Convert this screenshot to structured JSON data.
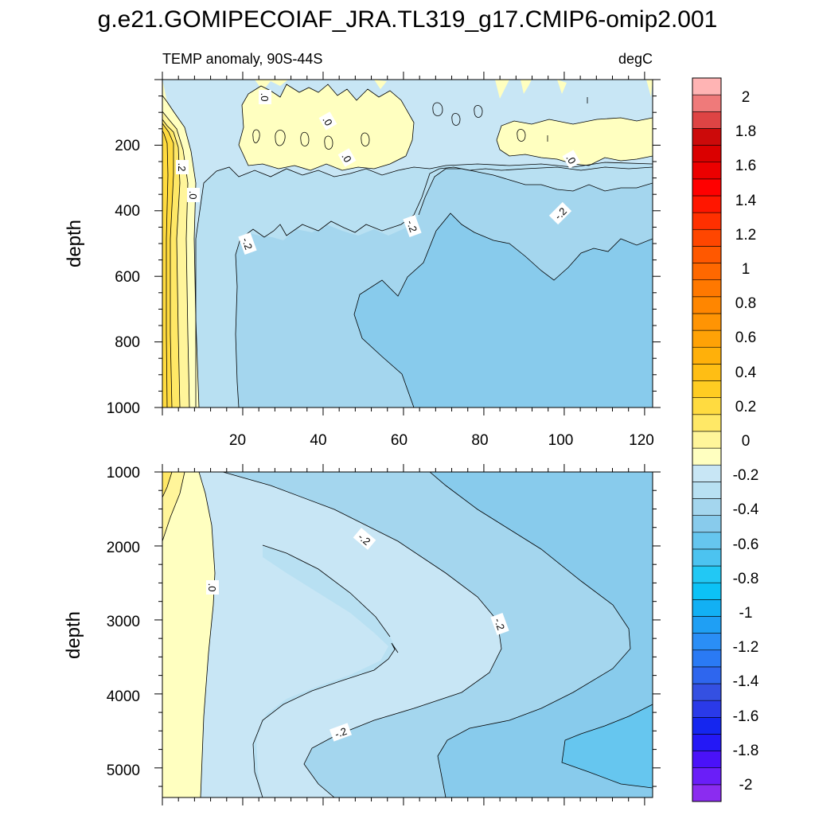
{
  "chart_data": {
    "type": "contour",
    "title": "g.e21.GOMIPECOIAF_JRA.TL319_g17.CMIP6-omip2.001",
    "left_string": "TEMP anomaly, 90S-44S",
    "right_string": "degC",
    "xlabel": "",
    "ylabel": "depth",
    "xlim": [
      0,
      122
    ],
    "x_ticks": [
      "20",
      "40",
      "60",
      "80",
      "100",
      "120"
    ],
    "contour_labels": [
      "-.2",
      ".0",
      ".2"
    ],
    "upper_panel": {
      "ylim": [
        0,
        1000
      ],
      "y_ticks": [
        "200",
        "400",
        "600",
        "800",
        "1000"
      ]
    },
    "lower_panel": {
      "ylim": [
        1000,
        5400
      ],
      "y_ticks": [
        "1000",
        "2000",
        "3000",
        "4000",
        "5000"
      ]
    },
    "colorbar": {
      "levels": [
        -2.1,
        -2.0,
        -1.9,
        -1.8,
        -1.7,
        -1.6,
        -1.5,
        -1.4,
        -1.3,
        -1.2,
        -1.1,
        -1.0,
        -0.9,
        -0.8,
        -0.7,
        -0.6,
        -0.5,
        -0.4,
        -0.3,
        -0.2,
        -0.1,
        0.0,
        0.1,
        0.2,
        0.3,
        0.4,
        0.5,
        0.6,
        0.7,
        0.8,
        0.9,
        1.0,
        1.1,
        1.2,
        1.3,
        1.4,
        1.5,
        1.6,
        1.7,
        1.8,
        1.9,
        2.0,
        2.1,
        2.2
      ],
      "colors": [
        "#8b2cf0",
        "#6a1ef8",
        "#4a12f8",
        "#2418f6",
        "#1526ef",
        "#2a3ae8",
        "#3450e2",
        "#2e66ee",
        "#2a7af4",
        "#2a8ef6",
        "#1f9ff4",
        "#12b0f4",
        "#0cc2f6",
        "#22c8f4",
        "#4cc3f0",
        "#66c6ef",
        "#88cbec",
        "#a4d6ee",
        "#b8e0f2",
        "#c8e6f5",
        "#ffffc0",
        "#fff59a",
        "#ffe866",
        "#ffdb40",
        "#ffcc22",
        "#ffbe14",
        "#ffb00a",
        "#ffa206",
        "#ff9404",
        "#ff8600",
        "#ff7800",
        "#ff6800",
        "#ff5800",
        "#ff4600",
        "#ff3000",
        "#ff1600",
        "#ff0000",
        "#ec0000",
        "#da0000",
        "#cc0a0a",
        "#de4444",
        "#ef7a7a",
        "#ffb4b4"
      ],
      "labels": [
        "2",
        "1.8",
        "1.6",
        "1.4",
        "1.2",
        "1",
        "0.8",
        "0.6",
        "0.4",
        "0.2",
        "0",
        "-0.2",
        "-0.4",
        "-0.6",
        "-0.8",
        "-1",
        "-1.2",
        "-1.4",
        "-1.6",
        "-1.8",
        "-2"
      ]
    }
  }
}
